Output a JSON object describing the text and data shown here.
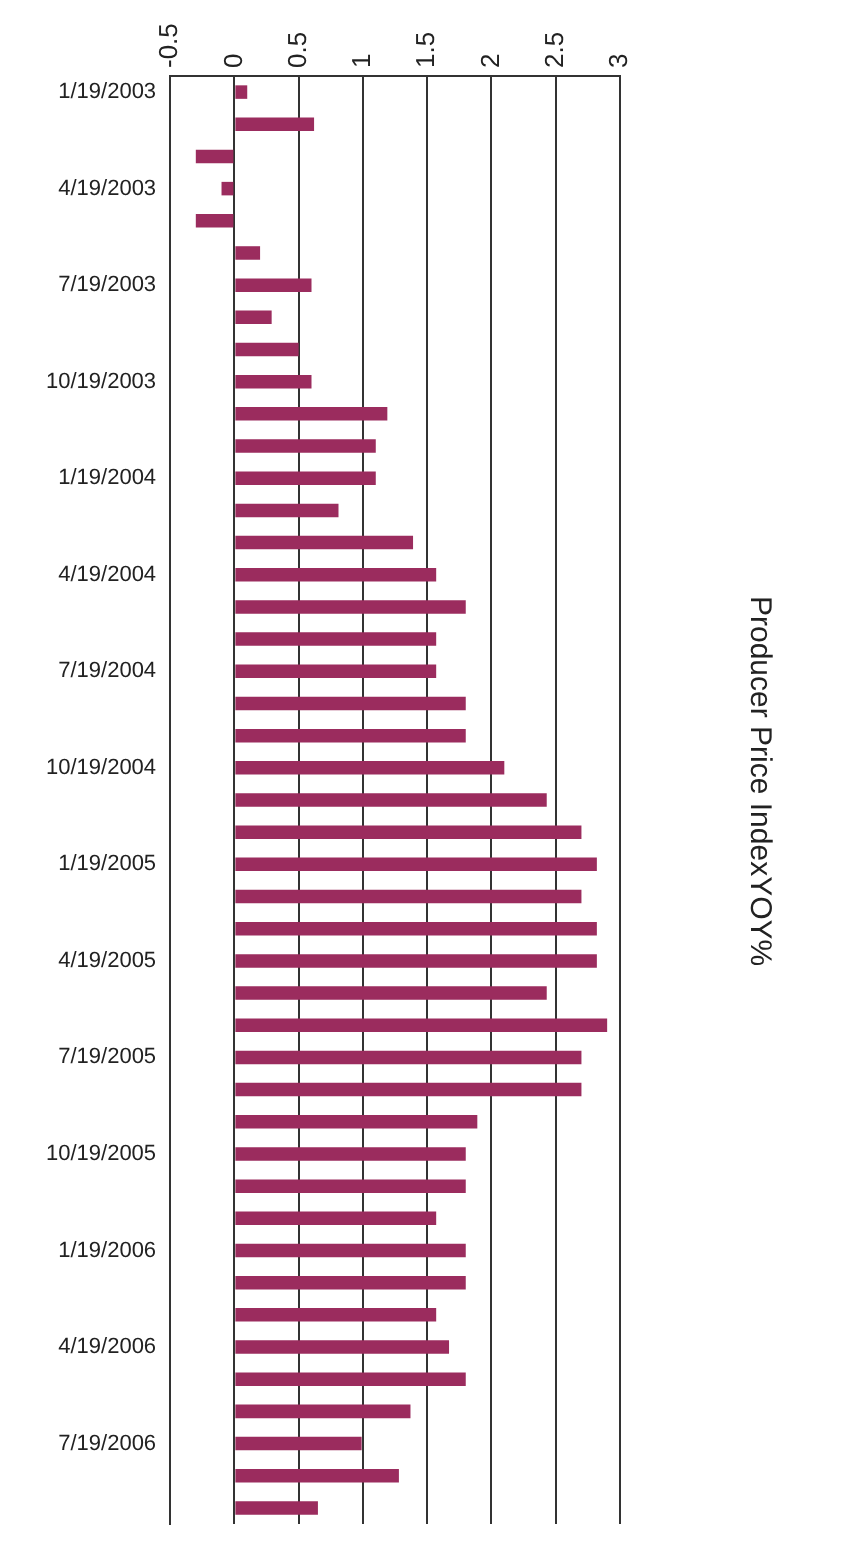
{
  "chart_data": {
    "type": "bar",
    "orientation": "horizontal",
    "title": "Producer Price IndexYOY%",
    "categories": [
      "1/19/2003",
      null,
      null,
      "4/19/2003",
      null,
      null,
      "7/19/2003",
      null,
      null,
      "10/19/2003",
      null,
      null,
      "1/19/2004",
      null,
      null,
      "4/19/2004",
      null,
      null,
      "7/19/2004",
      null,
      null,
      "10/19/2004",
      null,
      null,
      "1/19/2005",
      null,
      null,
      "4/19/2005",
      null,
      null,
      "7/19/2005",
      null,
      null,
      "10/19/2005",
      null,
      null,
      "1/19/2006",
      null,
      null,
      "4/19/2006",
      null,
      null,
      "7/19/2006",
      null,
      null
    ],
    "values": [
      0.1,
      0.62,
      -0.3,
      -0.1,
      -0.3,
      0.2,
      0.6,
      0.29,
      0.5,
      0.6,
      1.19,
      1.1,
      1.1,
      0.81,
      1.39,
      1.57,
      1.8,
      1.57,
      1.57,
      1.8,
      1.8,
      2.1,
      2.43,
      2.7,
      2.82,
      2.7,
      2.82,
      2.82,
      2.43,
      2.9,
      2.7,
      2.7,
      1.89,
      1.8,
      1.8,
      1.57,
      1.8,
      1.8,
      1.57,
      1.67,
      1.8,
      1.37,
      0.99,
      1.28,
      0.65
    ],
    "color": "#9b2c5e",
    "xlim": [
      -0.5,
      3
    ],
    "xticks": [
      -0.5,
      0,
      0.5,
      1,
      1.5,
      2,
      2.5,
      3
    ],
    "grid": "x",
    "legend": false
  }
}
